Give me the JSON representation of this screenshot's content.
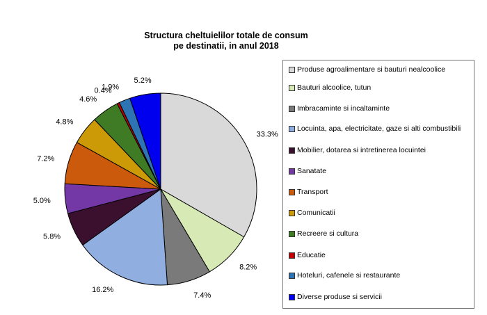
{
  "chart_data": {
    "type": "pie",
    "title_lines": [
      "Structura cheltuielilor totale de consum",
      "pe destinatii, in anul 2018"
    ],
    "slices": [
      {
        "name": "Produse agroalimentare si bauturi nealcoolice",
        "value": 33.3,
        "label": "33.3%",
        "color": "#d9d9d9"
      },
      {
        "name": "Bauturi alcoolice, tutun",
        "value": 8.2,
        "label": "8.2%",
        "color": "#d7e9b5"
      },
      {
        "name": "Imbracaminte si incaltaminte",
        "value": 7.4,
        "label": "7.4%",
        "color": "#7a7a7a"
      },
      {
        "name": "Locuinta, apa, electricitate, gaze si alti combustibili",
        "value": 16.2,
        "label": "16.2%",
        "color": "#91aee0"
      },
      {
        "name": "Mobilier, dotarea si intretinerea locuintei",
        "value": 5.8,
        "label": "5.8%",
        "color": "#3b0f2e"
      },
      {
        "name": "Sanatate",
        "value": 5.0,
        "label": "5.0%",
        "color": "#7338a6"
      },
      {
        "name": "Transport",
        "value": 7.2,
        "label": "7.2%",
        "color": "#cc5a0c"
      },
      {
        "name": "Comunicatii",
        "value": 4.8,
        "label": "4.8%",
        "color": "#cc9a06"
      },
      {
        "name": "Recreere si cultura",
        "value": 4.6,
        "label": "4.6%",
        "color": "#3f7a24"
      },
      {
        "name": "Educatie",
        "value": 0.4,
        "label": "0.4%",
        "color": "#c00000"
      },
      {
        "name": "Hoteluri, cafenele si restaurante",
        "value": 1.9,
        "label": "1.9%",
        "color": "#2e74b5"
      },
      {
        "name": "Diverse produse si servicii",
        "value": 5.2,
        "label": "5.2%",
        "color": "#0000ee"
      }
    ],
    "legend_position": "right",
    "start": "12 o'clock, clockwise"
  }
}
